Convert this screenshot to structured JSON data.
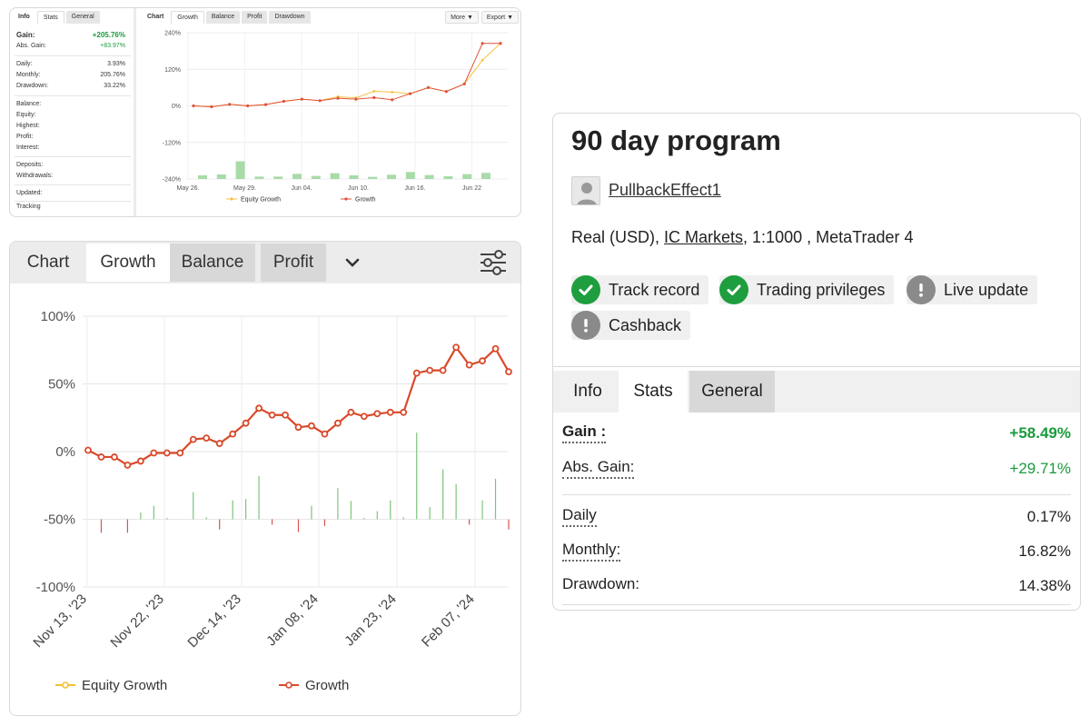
{
  "small_widget": {
    "tabs": [
      "Info",
      "Stats",
      "General"
    ],
    "stats": {
      "gain_label": "Gain:",
      "gain_value": "+205.76%",
      "abs_gain_label": "Abs. Gain:",
      "abs_gain_value": "+83.97%",
      "daily_label": "Daily:",
      "daily_value": "3.93%",
      "monthly_label": "Monthly:",
      "monthly_value": "205.76%",
      "drawdown_label": "Drawdown:",
      "drawdown_value": "33.22%"
    },
    "info_labels": [
      "Balance:",
      "Equity:",
      "Highest:",
      "Profit:",
      "Interest:",
      "Deposits:",
      "Withdrawals:",
      "Updated:",
      "Tracking"
    ],
    "chart_tabs": [
      "Chart",
      "Growth",
      "Balance",
      "Profit",
      "Drawdown"
    ],
    "buttons": [
      "More ▼",
      "Export ▼"
    ],
    "chart": {
      "y_ticks": [
        "240%",
        "120%",
        "0%",
        "-120%",
        "-240%"
      ],
      "x_ticks": [
        "May 26",
        "May 29",
        "Jun 04",
        "Jun 10",
        "Jun 16",
        "Jun 22"
      ],
      "legend": [
        "Equity Growth",
        "Growth"
      ]
    }
  },
  "big_chart": {
    "tabs": [
      "Chart",
      "Growth",
      "Balance",
      "Profit"
    ],
    "legend": [
      "Equity Growth",
      "Growth"
    ]
  },
  "program": {
    "title": "90 day program",
    "username": "PullbackEffect1",
    "account_prefix": "Real (USD),",
    "broker": "IC Markets",
    "account_suffix": ", 1:1000 , MetaTrader 4",
    "badges": [
      {
        "label": "Track record",
        "icon": "check-icon",
        "color": "#1e9e3e"
      },
      {
        "label": "Trading privileges",
        "icon": "check-icon",
        "color": "#1e9e3e"
      },
      {
        "label": "Live update",
        "icon": "exclamation-icon",
        "color": "#8a8a8a"
      },
      {
        "label": "Cashback",
        "icon": "exclamation-icon",
        "color": "#8a8a8a"
      }
    ],
    "tabs": [
      "Info",
      "Stats",
      "General"
    ],
    "stats": {
      "gain_label": "Gain :",
      "gain_value": "+58.49%",
      "abs_gain_label": "Abs. Gain:",
      "abs_gain_value": "+29.71%",
      "daily_label": "Daily",
      "daily_value": "0.17%",
      "monthly_label": "Monthly:",
      "monthly_value": "16.82%",
      "drawdown_label": "Drawdown:",
      "drawdown_value": "14.38%"
    }
  },
  "chart_data": [
    {
      "type": "line",
      "x_ticks": [
        "May 26.",
        "May 29.",
        "Jun 04.",
        "Jun 10.",
        "Jun 16.",
        "Jun 22"
      ],
      "ylim": [
        -240,
        240
      ],
      "y_ticks": [
        240,
        120,
        0,
        -120,
        -240
      ],
      "series": [
        {
          "name": "Growth",
          "values": [
            0,
            -3,
            5,
            0,
            4,
            15,
            22,
            17,
            25,
            22,
            27,
            20,
            40,
            60,
            47,
            72,
            205,
            205
          ]
        },
        {
          "name": "Equity Growth",
          "values": [
            0,
            -3,
            5,
            0,
            4,
            15,
            22,
            17,
            30,
            26,
            48,
            45,
            40,
            60,
            47,
            72,
            150,
            205
          ]
        }
      ],
      "bars": [
        12,
        15,
        58,
        8,
        8,
        17,
        10,
        19,
        12,
        7,
        14,
        23,
        13,
        9,
        16,
        20
      ]
    },
    {
      "type": "line",
      "x_ticks": [
        "Nov 13, '23",
        "Nov 22, '23",
        "Dec 14, '23",
        "Jan 08, '24",
        "Jan 23, '24",
        "Feb 07, '24"
      ],
      "ylim": [
        -100,
        100
      ],
      "y_ticks": [
        "100%",
        "50%",
        "0%",
        "-50%",
        "-100%"
      ],
      "series": [
        {
          "name": "Growth",
          "values": [
            1,
            -4,
            -4,
            -10,
            -7,
            -1,
            -1,
            -1,
            9,
            10,
            6,
            13,
            21,
            32,
            27,
            27,
            18,
            19,
            13,
            21,
            29,
            26,
            28,
            29,
            29,
            58,
            60,
            60,
            77,
            64,
            67,
            76,
            59
          ]
        },
        {
          "name": "Equity Growth",
          "values": []
        }
      ],
      "bars": [
        0,
        -20,
        0,
        -20,
        10,
        20,
        2,
        0,
        40,
        3,
        -15,
        28,
        30,
        64,
        -8,
        0,
        -19,
        20,
        -10,
        46,
        27,
        2,
        12,
        28,
        3,
        128,
        18,
        74,
        52,
        -8,
        28,
        60,
        -15
      ]
    }
  ]
}
